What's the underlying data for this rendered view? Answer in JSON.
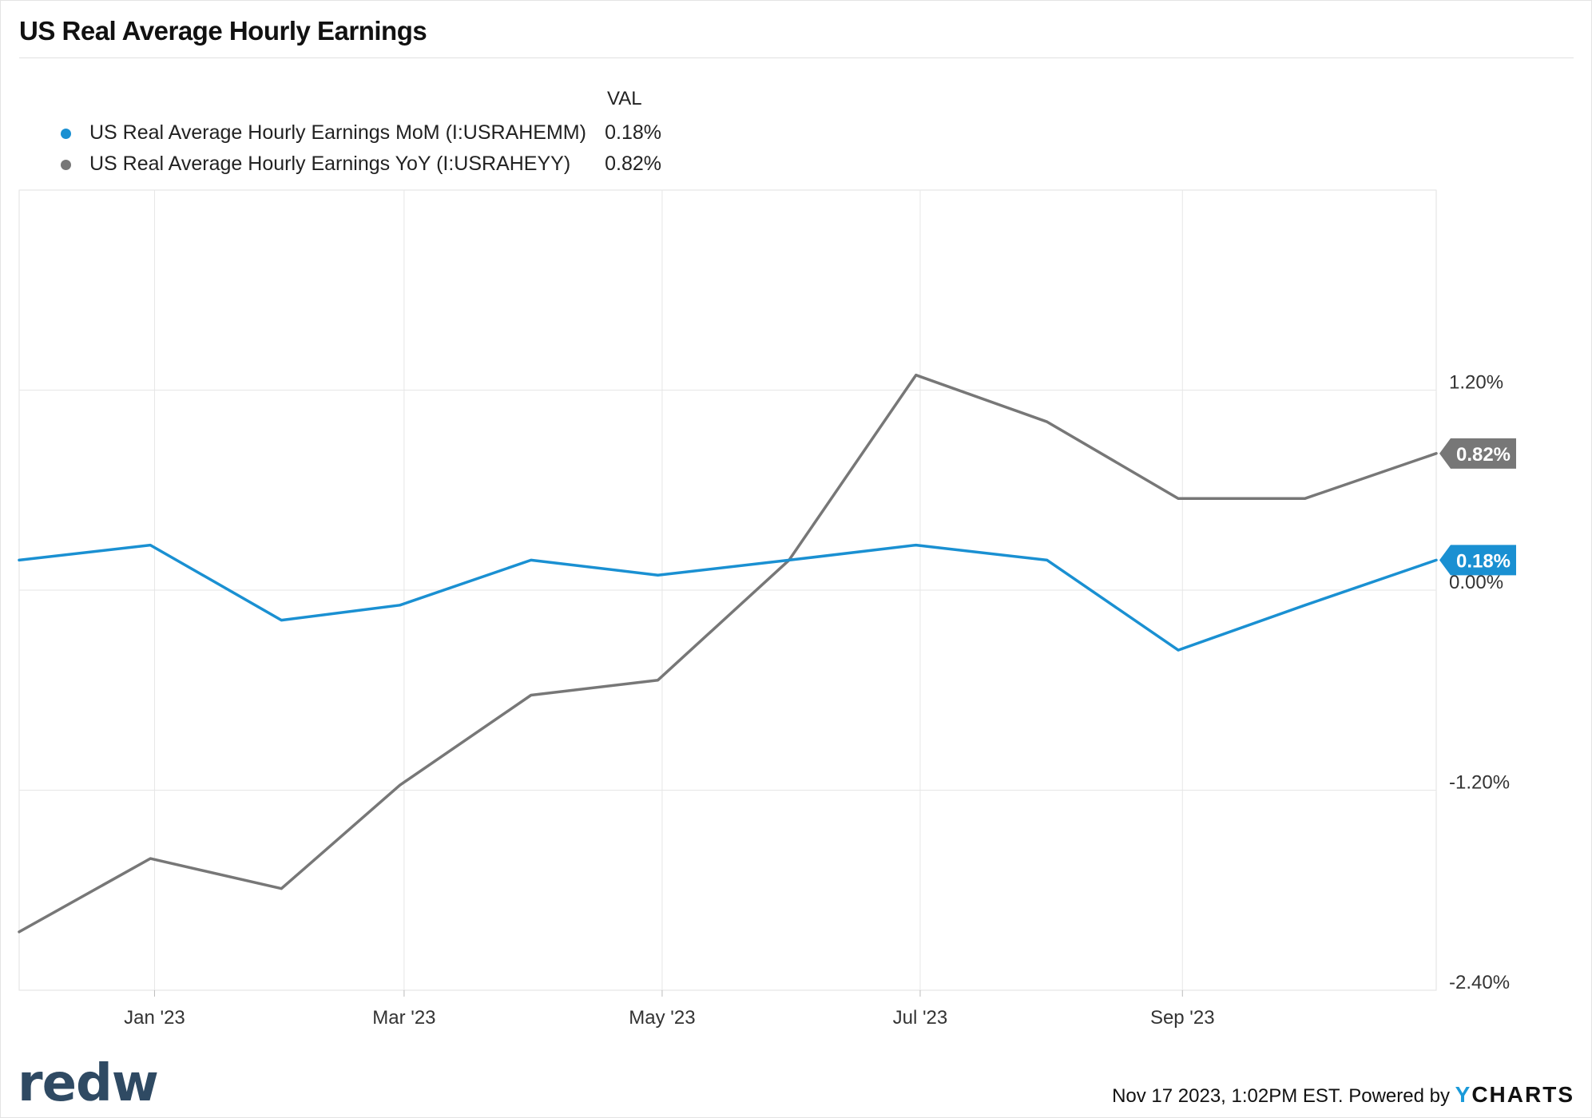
{
  "title": "US Real Average Hourly Earnings",
  "legend": {
    "header": "VAL",
    "items": [
      {
        "label": "US Real Average Hourly Earnings MoM (I:USRAHEMM)",
        "value": "0.18%",
        "color": "#1a90d2"
      },
      {
        "label": "US Real Average Hourly Earnings YoY (I:USRAHEYY)",
        "value": "0.82%",
        "color": "#777777"
      }
    ]
  },
  "footer": {
    "logo": "redw",
    "credit": "Nov 17 2023, 1:02PM EST. Powered by",
    "brand_y": "Y",
    "brand_rest": "CHARTS"
  },
  "chart_data": {
    "type": "line",
    "x": [
      "2022-11-30",
      "2022-12-31",
      "2023-01-31",
      "2023-02-28",
      "2023-03-31",
      "2023-04-30",
      "2023-05-31",
      "2023-06-30",
      "2023-07-31",
      "2023-08-31",
      "2023-09-30",
      "2023-10-31"
    ],
    "x_tick_labels": [
      {
        "date": "2023-01-01",
        "label": "Jan '23"
      },
      {
        "date": "2023-03-01",
        "label": "Mar '23"
      },
      {
        "date": "2023-05-01",
        "label": "May '23"
      },
      {
        "date": "2023-07-01",
        "label": "Jul '23"
      },
      {
        "date": "2023-09-01",
        "label": "Sep '23"
      }
    ],
    "y_ticks": [
      {
        "value": 1.2,
        "label": "1.20%"
      },
      {
        "value": 0.0,
        "label": "0.00%"
      },
      {
        "value": -1.2,
        "label": "-1.20%"
      },
      {
        "value": -2.4,
        "label": "-2.40%"
      }
    ],
    "ylim": [
      -2.4,
      2.4
    ],
    "grid": true,
    "series": [
      {
        "name": "US Real Average Hourly Earnings MoM (I:USRAHEMM)",
        "color": "#1a90d2",
        "values": [
          0.18,
          0.27,
          -0.18,
          -0.09,
          0.18,
          0.09,
          0.18,
          0.27,
          0.18,
          -0.36,
          -0.09,
          0.18
        ],
        "end_label": "0.18%"
      },
      {
        "name": "US Real Average Hourly Earnings YoY (I:USRAHEYY)",
        "color": "#777777",
        "values": [
          -2.05,
          -1.61,
          -1.79,
          -1.17,
          -0.63,
          -0.54,
          0.18,
          1.29,
          1.01,
          0.55,
          0.55,
          0.82
        ],
        "end_label": "0.82%"
      }
    ]
  }
}
